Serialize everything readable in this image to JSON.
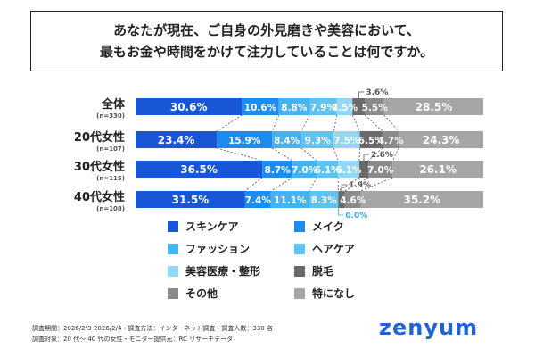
{
  "title": {
    "line1": "あなたが現在、ご自身の外見磨きや美容において、",
    "line2": "最もお金や時間をかけて注力していることは何ですか。"
  },
  "chart_data": {
    "type": "bar",
    "stacked": true,
    "orientation": "horizontal",
    "unit": "%",
    "categories": [
      {
        "label": "全体",
        "n": "(n=330)"
      },
      {
        "label": "20代女性",
        "n": "(n=107)"
      },
      {
        "label": "30代女性",
        "n": "(n=115)"
      },
      {
        "label": "40代女性",
        "n": "(n=108)"
      }
    ],
    "series": [
      {
        "name": "スキンケア",
        "color": "#1756d4",
        "values": [
          30.6,
          23.4,
          36.5,
          31.5
        ]
      },
      {
        "name": "メイク",
        "color": "#1d8cf0",
        "values": [
          10.6,
          15.9,
          8.7,
          7.4
        ]
      },
      {
        "name": "ファッション",
        "color": "#46b2ef",
        "values": [
          8.8,
          8.4,
          7.0,
          11.1
        ]
      },
      {
        "name": "ヘアケア",
        "color": "#5fc2f0",
        "values": [
          7.9,
          9.3,
          6.1,
          8.3
        ]
      },
      {
        "name": "美容医療・整形",
        "color": "#93d6f6",
        "values": [
          4.5,
          7.5,
          6.1,
          0.0
        ]
      },
      {
        "name": "脱毛",
        "color": "#6a6a6a",
        "values": [
          3.6,
          6.5,
          2.6,
          1.9
        ]
      },
      {
        "name": "その他",
        "color": "#8a8a8a",
        "values": [
          5.5,
          4.7,
          7.0,
          4.6
        ]
      },
      {
        "name": "特になし",
        "color": "#a6a6a6",
        "values": [
          28.5,
          24.3,
          26.1,
          35.2
        ]
      }
    ],
    "labels": [
      [
        "30.6%",
        "10.6%",
        "8.8%",
        "7.9%",
        "4.5%",
        "",
        "5.5%",
        "28.5%"
      ],
      [
        "23.4%",
        "15.9%",
        "8.4%",
        "9.3%",
        "7.5%",
        "6.5%",
        "4.7%",
        "24.3%"
      ],
      [
        "36.5%",
        "8.7%",
        "7.0%",
        "6.1%",
        "6.1%",
        "",
        "7.0%",
        "26.1%"
      ],
      [
        "31.5%",
        "7.4%",
        "11.1%",
        "8.3%",
        "",
        "",
        "4.6%",
        "35.2%"
      ]
    ],
    "callouts": [
      {
        "row": 0,
        "seg": 5,
        "text": "3.6%",
        "where": "above"
      },
      {
        "row": 2,
        "seg": 5,
        "text": "2.6%",
        "where": "above"
      },
      {
        "row": 3,
        "seg": 5,
        "text": "1.9%",
        "where": "above"
      },
      {
        "row": 3,
        "seg": 4,
        "text": "0.0%",
        "where": "below"
      }
    ],
    "legend_position": "bottom"
  },
  "footnote": {
    "line1": "調査期間：2026/2/3-2026/2/4・調査方法：インターネット調査・調査人数：330 名",
    "line2": "調査対象：20 代〜 40 代の女性・モニター提供元：RC リサーチデータ"
  },
  "brand": {
    "logo_text": "zenyum",
    "color": "#1f64d6"
  }
}
